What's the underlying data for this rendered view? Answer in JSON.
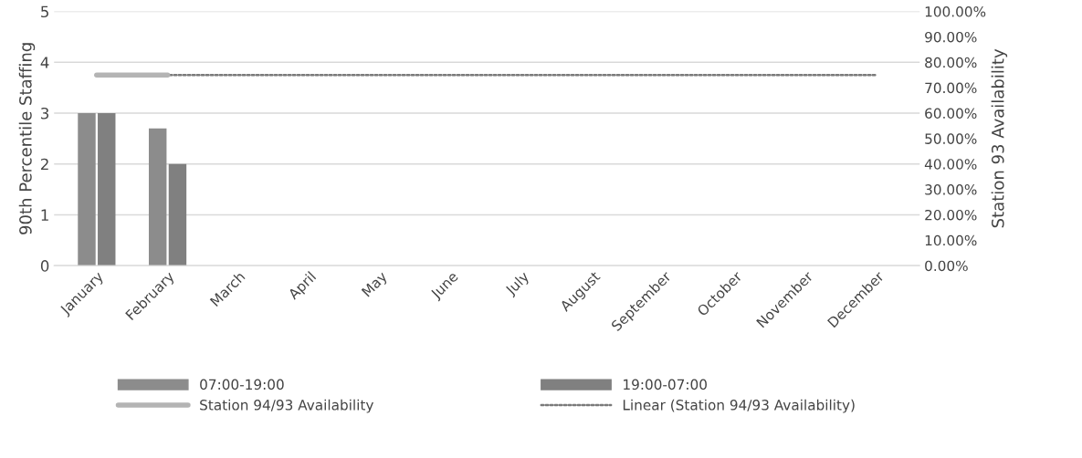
{
  "chart_data": {
    "type": "bar",
    "ylabel": "90th Percentile Staffing",
    "y2label": "Station 93 Availability",
    "categories": [
      "January",
      "February",
      "March",
      "April",
      "May",
      "June",
      "July",
      "August",
      "September",
      "October",
      "November",
      "December"
    ],
    "series": [
      {
        "name": "07:00-19:00",
        "color": "#8c8c8c",
        "values": [
          3,
          2.7,
          null,
          null,
          null,
          null,
          null,
          null,
          null,
          null,
          null,
          null
        ]
      },
      {
        "name": "19:00-07:00",
        "color": "#808080",
        "values": [
          3,
          2,
          null,
          null,
          null,
          null,
          null,
          null,
          null,
          null,
          null,
          null
        ]
      },
      {
        "name": "Station 94/93 Availability",
        "type": "line",
        "axis": "y2",
        "color": "#b4b4b4",
        "values": [
          75,
          75,
          null,
          null,
          null,
          null,
          null,
          null,
          null,
          null,
          null,
          null
        ]
      },
      {
        "name": "Linear (Station 94/93 Availability)",
        "type": "line",
        "axis": "y2",
        "color": "#7a7a7a",
        "line_style": "dotted",
        "values": [
          75,
          75,
          75,
          75,
          75,
          75,
          75,
          75,
          75,
          75,
          75,
          75
        ]
      }
    ],
    "ylim": [
      0,
      5
    ],
    "yticks": [
      0,
      1,
      2,
      3,
      4,
      5
    ],
    "y2lim": [
      0,
      100
    ],
    "y2ticks": [
      {
        "value": 0,
        "label": "0.00%"
      },
      {
        "value": 10,
        "label": "10.00%"
      },
      {
        "value": 20,
        "label": "20.00%"
      },
      {
        "value": 30,
        "label": "30.00%"
      },
      {
        "value": 40,
        "label": "40.00%"
      },
      {
        "value": 50,
        "label": "50.00%"
      },
      {
        "value": 60,
        "label": "60.00%"
      },
      {
        "value": 70,
        "label": "70.00%"
      },
      {
        "value": 80,
        "label": "80.00%"
      },
      {
        "value": 90,
        "label": "90.00%"
      },
      {
        "value": 100,
        "label": "100.00%"
      }
    ],
    "grid": "y",
    "legend": "bottom"
  }
}
